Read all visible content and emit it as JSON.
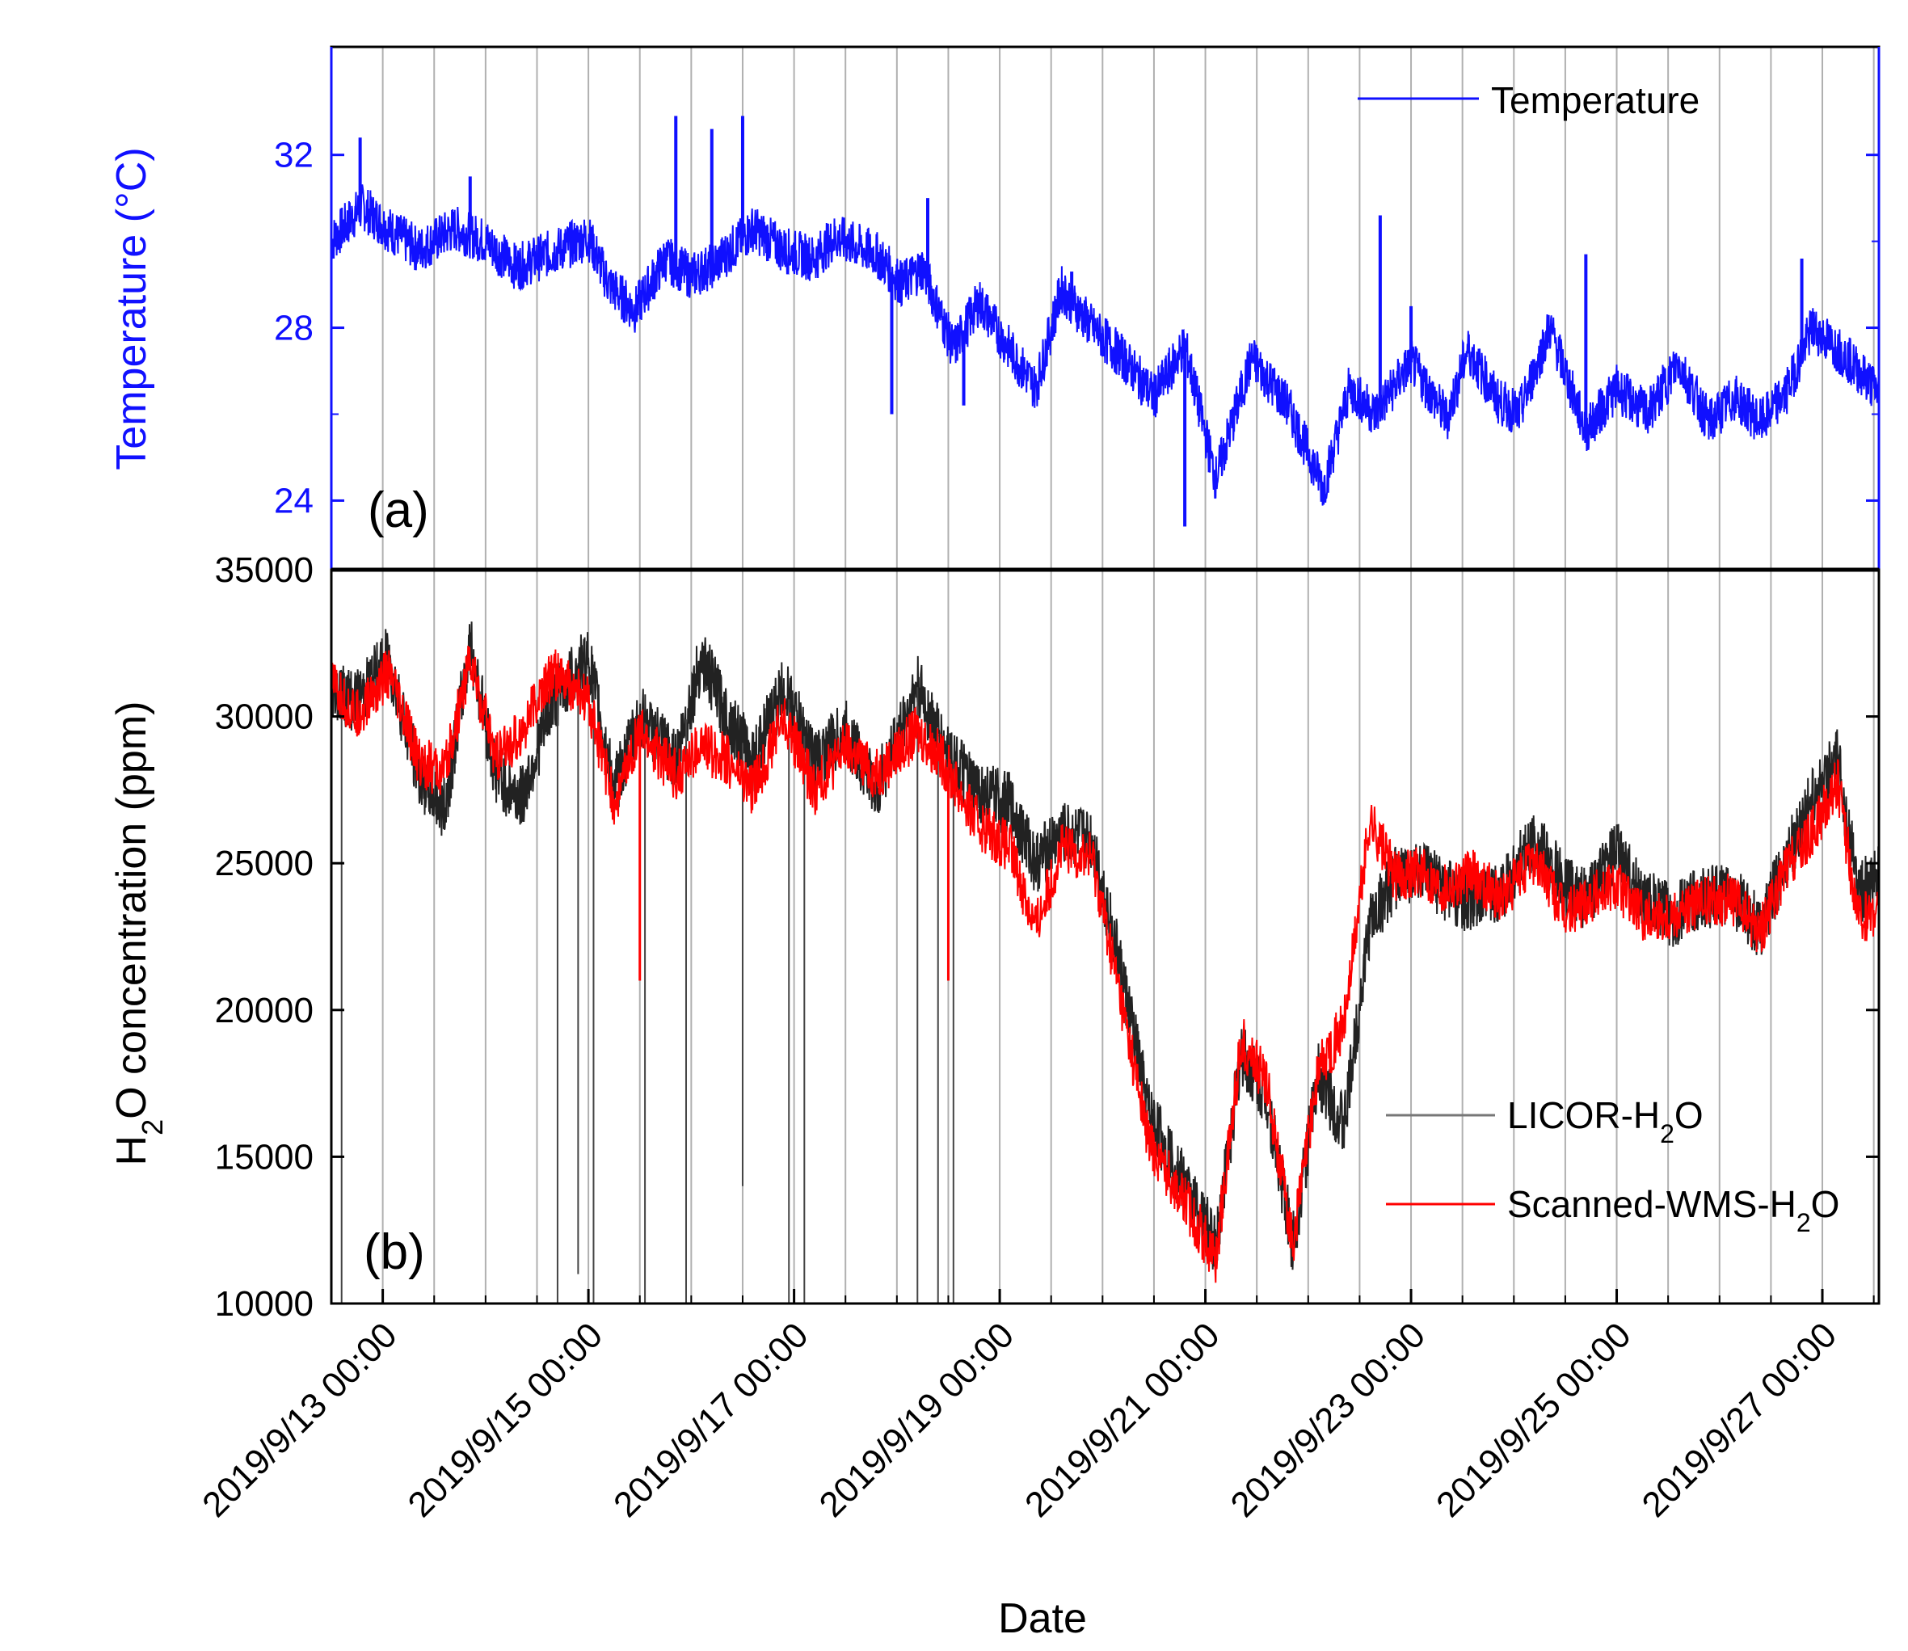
{
  "colors": {
    "temperature": "#1010ff",
    "licor": "#222222",
    "wms": "#ff0000",
    "gridline": "#b0b0b0",
    "axis": "#000000",
    "temp_axis": "#1010ff"
  },
  "chart_data": [
    {
      "panel": "(a)",
      "type": "line",
      "ylabel_prefix": "Temperature (",
      "ylabel_unit": "°C",
      "ylabel_suffix": ")",
      "ylim": [
        22.4,
        34.5
      ],
      "yticks": [
        24,
        28,
        32
      ],
      "ytick_labels": [
        "24",
        "28",
        "32"
      ],
      "x_unit": "days since 2019/9/12 12:00",
      "xlim": [
        0,
        15.05
      ],
      "legend": [
        "Temperature"
      ],
      "series": [
        {
          "name": "Temperature",
          "x": [
            0,
            0.3,
            0.55,
            0.85,
            1.2,
            1.5,
            1.8,
            2.2,
            2.5,
            2.7,
            2.95,
            3.25,
            3.5,
            3.75,
            4.1,
            4.4,
            4.7,
            4.9,
            5.3,
            5.55,
            5.75,
            6.05,
            6.3,
            6.65,
            6.85,
            7.1,
            7.4,
            7.7,
            8.0,
            8.3,
            8.6,
            8.95,
            9.3,
            9.65,
            9.9,
            10.15,
            10.5,
            10.85,
            11.05,
            11.35,
            11.55,
            11.85,
            12.2,
            12.5,
            12.8,
            13.1,
            13.4,
            13.65,
            13.9,
            14.15,
            14.4,
            14.7,
            15.05
          ],
          "values": [
            30.0,
            30.8,
            30.3,
            29.8,
            30.3,
            30.0,
            29.4,
            29.8,
            30.1,
            29.0,
            28.4,
            29.6,
            29.2,
            29.5,
            30.3,
            29.8,
            29.6,
            30.1,
            29.7,
            29.0,
            29.4,
            27.5,
            28.6,
            27.3,
            26.6,
            28.9,
            28.0,
            27.3,
            26.4,
            27.6,
            24.5,
            27.3,
            26.2,
            24.3,
            26.6,
            26.0,
            27.2,
            25.9,
            27.5,
            26.3,
            26.0,
            28.0,
            25.6,
            26.6,
            26.0,
            27.2,
            25.8,
            26.4,
            25.8,
            26.5,
            28.0,
            27.4,
            26.5
          ],
          "spike_x": [
            0.28,
            1.35,
            2.4,
            2.6,
            3.35,
            3.7,
            4.0,
            5.45,
            5.8,
            6.15,
            7.2,
            8.3,
            10.2,
            10.5,
            12.2,
            14.3
          ],
          "spike_vals": [
            32.4,
            31.5,
            30.2,
            29.5,
            32.9,
            32.6,
            32.9,
            26.0,
            31.0,
            26.2,
            29.3,
            23.4,
            30.6,
            28.5,
            29.7,
            29.6
          ]
        }
      ]
    },
    {
      "panel": "(b)",
      "type": "line",
      "xlabel": "Date",
      "ylabel_pre": "H",
      "ylabel_sub": "2",
      "ylabel_post": "O concentration (ppm)",
      "ylim": [
        10000,
        35000
      ],
      "yticks": [
        10000,
        15000,
        20000,
        25000,
        30000,
        35000
      ],
      "ytick_labels": [
        "10000",
        "15000",
        "20000",
        "25000",
        "30000",
        "35000"
      ],
      "x_unit": "days since 2019/9/12 12:00",
      "xlim": [
        0,
        15.05
      ],
      "xticks": [
        0.5,
        2.5,
        4.5,
        6.5,
        8.5,
        10.5,
        12.5,
        14.5
      ],
      "xtick_labels": [
        "2019/9/13 00:00",
        "2019/9/15 00:00",
        "2019/9/17 00:00",
        "2019/9/19 00:00",
        "2019/9/21 00:00",
        "2019/9/23 00:00",
        "2019/9/25 00:00",
        "2019/9/27 00:00"
      ],
      "legend": [
        {
          "pre": "LICOR-H",
          "sub": "2",
          "post": "O"
        },
        {
          "pre": "Scanned-WMS-H",
          "sub": "2",
          "post": "O"
        }
      ],
      "series": [
        {
          "name": "LICOR-H2O",
          "x": [
            0,
            0.25,
            0.55,
            0.85,
            1.1,
            1.35,
            1.6,
            1.85,
            2.15,
            2.5,
            2.75,
            3.0,
            3.35,
            3.6,
            3.85,
            4.1,
            4.4,
            4.7,
            5.0,
            5.3,
            5.7,
            5.95,
            6.25,
            6.6,
            6.85,
            7.1,
            7.4,
            7.7,
            7.95,
            8.3,
            8.6,
            8.85,
            9.1,
            9.35,
            9.6,
            9.85,
            10.1,
            10.35,
            10.55,
            10.8,
            11.1,
            11.4,
            11.7,
            12.0,
            12.2,
            12.5,
            12.75,
            13.05,
            13.3,
            13.6,
            13.9,
            14.15,
            14.4,
            14.65,
            14.85,
            15.05
          ],
          "values": [
            31000,
            30500,
            32000,
            28000,
            26800,
            32500,
            28000,
            27200,
            30500,
            32000,
            27500,
            30000,
            28500,
            32000,
            30000,
            28500,
            31000,
            28500,
            29500,
            27500,
            31000,
            29000,
            27500,
            27000,
            25000,
            26000,
            25800,
            21000,
            16500,
            14000,
            12000,
            18500,
            17000,
            12000,
            17800,
            16000,
            23000,
            24500,
            24800,
            24200,
            23600,
            24200,
            25800,
            24200,
            23800,
            25400,
            23800,
            23200,
            23800,
            24000,
            22800,
            25200,
            27200,
            28500,
            24000,
            24500
          ],
          "dropout_x": [
            0.1,
            2.2,
            2.4,
            2.55,
            3.05,
            3.45,
            4.0,
            4.45,
            4.6,
            5.7,
            5.9,
            6.05
          ],
          "dropout_vals": [
            10000,
            10000,
            11000,
            10000,
            10000,
            10000,
            14000,
            10000,
            10000,
            10000,
            10000,
            10000
          ]
        },
        {
          "name": "Scanned-WMS-H2O",
          "x": [
            0,
            0.25,
            0.55,
            0.85,
            1.1,
            1.35,
            1.6,
            1.85,
            2.15,
            2.5,
            2.75,
            3.0,
            3.35,
            3.6,
            3.85,
            4.1,
            4.4,
            4.7,
            5.0,
            5.3,
            5.7,
            5.95,
            6.25,
            6.6,
            6.85,
            7.1,
            7.4,
            7.7,
            7.95,
            8.3,
            8.6,
            8.85,
            9.1,
            9.35,
            9.6,
            9.85,
            10.1,
            10.35,
            10.55,
            10.8,
            11.1,
            11.4,
            11.7,
            12.0,
            12.2,
            12.5,
            12.75,
            13.05,
            13.3,
            13.6,
            13.9,
            14.15,
            14.4,
            14.65,
            14.85,
            15.05
          ],
          "values": [
            31000,
            30000,
            31500,
            28500,
            28000,
            32000,
            28500,
            29500,
            31500,
            30500,
            27000,
            29500,
            28000,
            29000,
            28500,
            27500,
            30000,
            27500,
            29000,
            28000,
            29500,
            28500,
            26500,
            25500,
            22800,
            25500,
            25200,
            20000,
            15500,
            13500,
            11500,
            19000,
            17500,
            12000,
            18000,
            19500,
            26500,
            24500,
            24800,
            24200,
            24600,
            23800,
            25200,
            23200,
            23800,
            24300,
            23200,
            23300,
            23600,
            23800,
            22700,
            24800,
            26000,
            27800,
            23000,
            23500
          ],
          "dropout_x": [
            3.0,
            6.0
          ],
          "dropout_vals": [
            21000,
            21000
          ]
        }
      ]
    }
  ]
}
